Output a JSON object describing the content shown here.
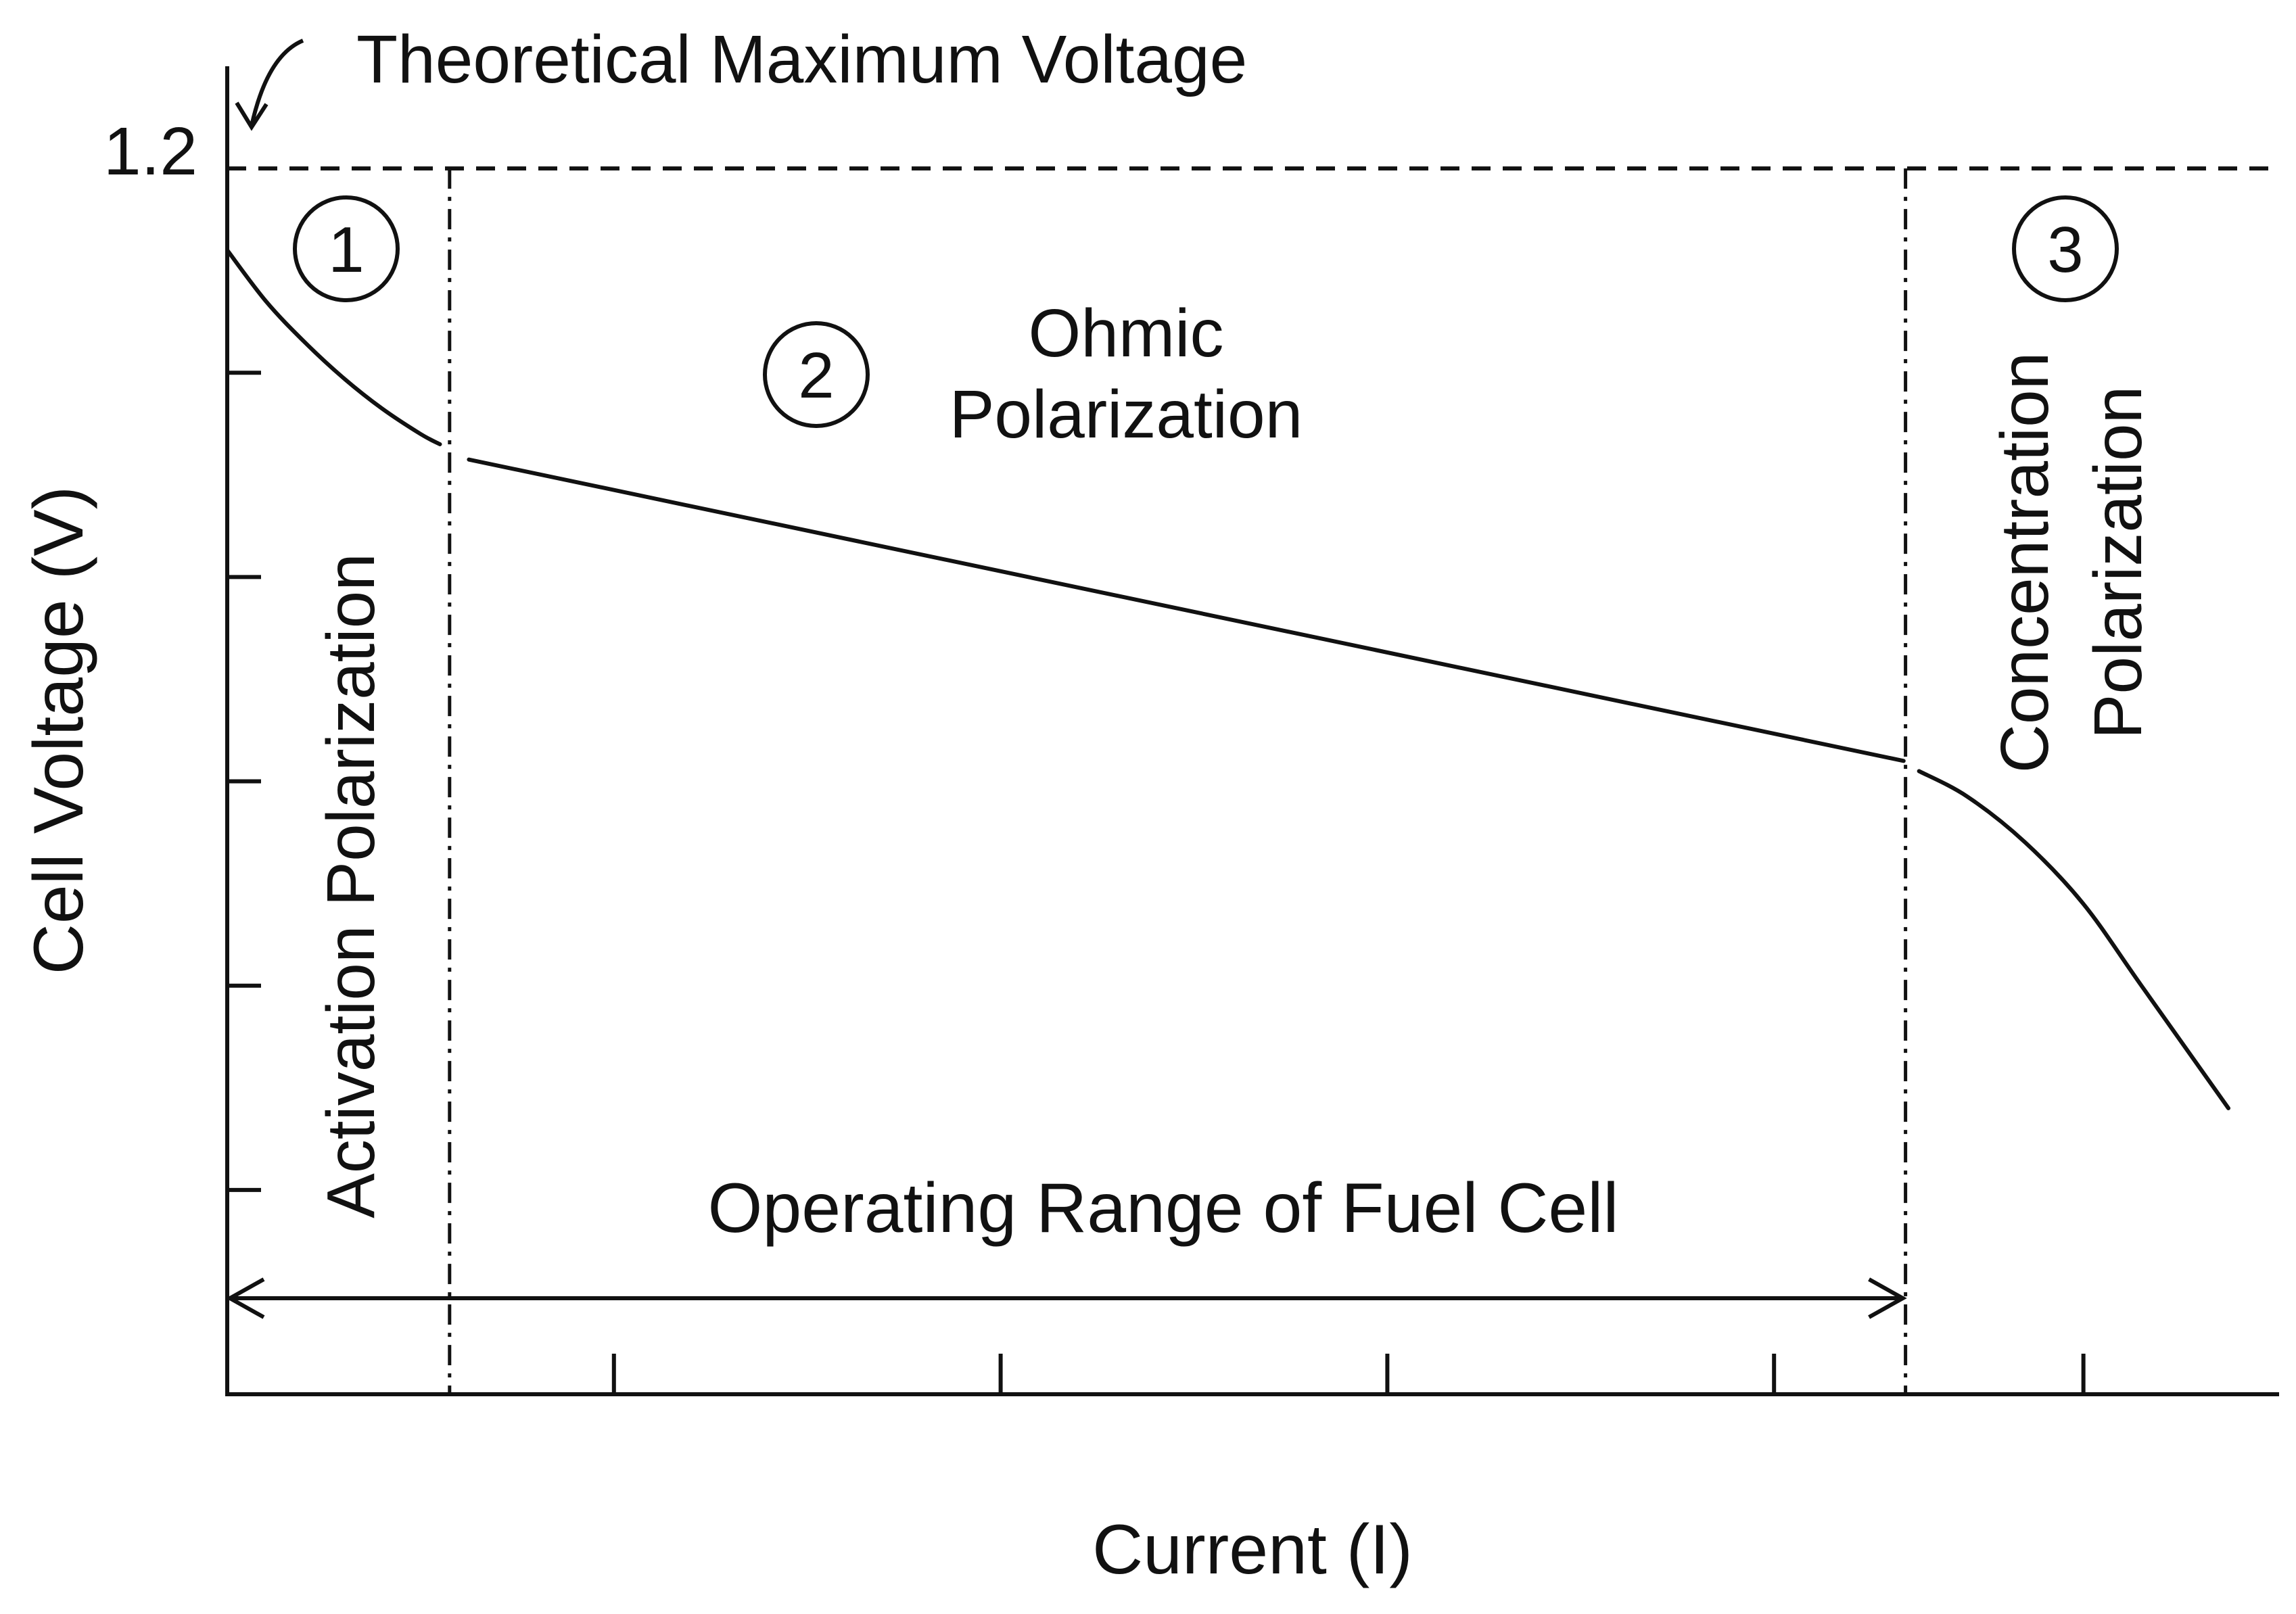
{
  "chart_data": {
    "type": "line",
    "title": "",
    "xlabel": "Current (I)",
    "ylabel": "Cell Voltage (V)",
    "y_tick_label": "1.2",
    "annotation_max_voltage": "Theoretical Maximum Voltage",
    "theoretical_max_voltage": 1.2,
    "xlim": [
      0,
      1.0
    ],
    "ylim": [
      0,
      1.3
    ],
    "x_ticks": [
      0.2,
      0.4,
      0.6,
      0.8,
      0.96
    ],
    "y_ticks": [
      0.2,
      0.4,
      0.6,
      0.8,
      1.0
    ],
    "region_boundaries": [
      0.115,
      0.868
    ],
    "operating_range": [
      0,
      0.868
    ],
    "operating_range_label": "Operating Range of Fuel Cell",
    "regions": [
      {
        "number": "1",
        "name": "Activation Polarization"
      },
      {
        "number": "2",
        "name_line1": "Ohmic",
        "name_line2": "Polarization"
      },
      {
        "number": "3",
        "name_line1": "Concentration",
        "name_line2": "Polarization"
      }
    ],
    "series": [
      {
        "name": "activation",
        "x": [
          0,
          0.02,
          0.04,
          0.06,
          0.08,
          0.1,
          0.11
        ],
        "y": [
          1.12,
          1.07,
          1.03,
          0.995,
          0.965,
          0.94,
          0.93
        ]
      },
      {
        "name": "ohmic",
        "x": [
          0.125,
          0.867
        ],
        "y": [
          0.915,
          0.62
        ]
      },
      {
        "name": "concentration",
        "x": [
          0.875,
          0.9,
          0.93,
          0.96,
          0.99,
          1.035
        ],
        "y": [
          0.61,
          0.585,
          0.54,
          0.48,
          0.4,
          0.28
        ]
      }
    ]
  }
}
